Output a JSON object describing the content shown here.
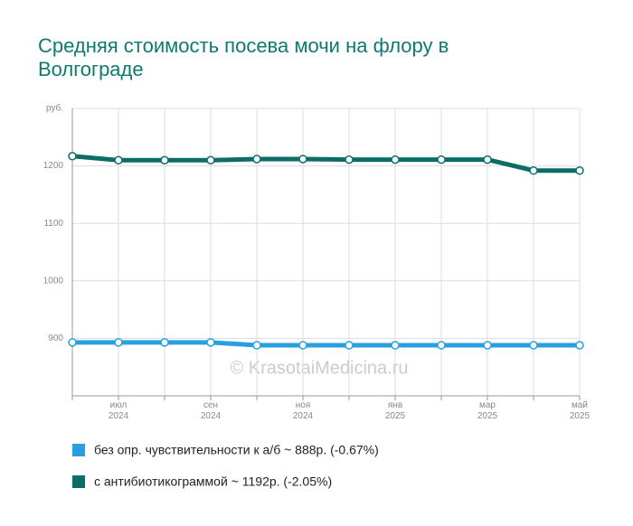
{
  "chart_data": {
    "type": "line",
    "title": "Средняя стоимость посева мочи на флору в Волгограде",
    "watermark": "© KrasotaiMedicina.ru",
    "categories": [
      null,
      "июл\n2024",
      null,
      "сен\n2024",
      null,
      "ноя\n2024",
      null,
      "янв\n2025",
      null,
      "мар\n2025",
      null,
      "май\n2025"
    ],
    "series": [
      {
        "name": "без опр. чувствительности к а/б ~ 888р. (-0.67%)",
        "color": "#2a9fe0",
        "values": [
          893,
          893,
          893,
          893,
          888,
          888,
          888,
          888,
          888,
          888,
          888,
          888
        ]
      },
      {
        "name": "с антибиотикограммой ~ 1192р. (-2.05%)",
        "color": "#0b6e66",
        "values": [
          1217,
          1210,
          1210,
          1210,
          1212,
          1212,
          1211,
          1211,
          1211,
          1211,
          1192,
          1192
        ]
      }
    ],
    "ylim": [
      800,
      1300
    ],
    "yticks": [
      900,
      1000,
      1100,
      1200,
      {
        "value": 1300,
        "label": "руб."
      }
    ],
    "grid": true
  }
}
